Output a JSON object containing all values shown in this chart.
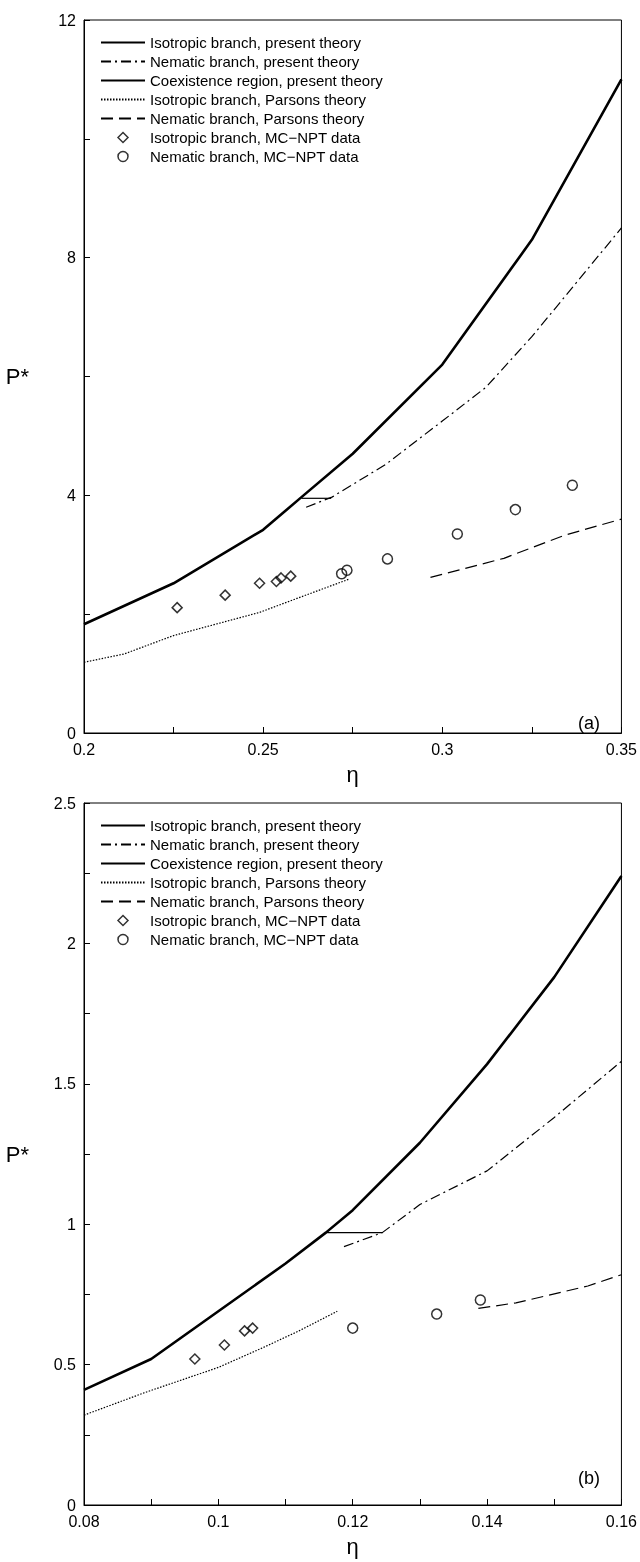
{
  "chart_data": [
    {
      "type": "line",
      "xlabel": "η",
      "ylabel": "P*",
      "annotations": [
        "(a)"
      ],
      "xlim": [
        0.2,
        0.35
      ],
      "ylim": [
        0,
        12
      ],
      "xticks": [
        0.2,
        {
          "value": 0.225,
          "label": null
        },
        0.25,
        {
          "value": 0.275,
          "label": null
        },
        0.3,
        {
          "value": 0.325,
          "label": null
        },
        0.35
      ],
      "yticks": [
        0,
        {
          "value": 2,
          "label": null
        },
        4,
        {
          "value": 6,
          "label": null
        },
        8,
        {
          "value": 10,
          "label": null
        },
        12
      ],
      "legend": "top left",
      "grid": false,
      "series": [
        {
          "name": "Isotropic branch, present theory",
          "type": "line",
          "line_style": "solid",
          "marker": "none",
          "color": "#000000",
          "x": [
            0.2,
            0.225,
            0.25,
            0.2607,
            0.275,
            0.3,
            0.325,
            0.35
          ],
          "values": [
            1.83,
            2.52,
            3.42,
            3.97,
            4.7,
            6.2,
            8.3,
            11.0
          ]
        },
        {
          "name": "Nematic branch, present theory",
          "line_style": "dashdot",
          "marker": "none",
          "color": "#000000",
          "x": [
            0.262,
            0.2692,
            0.2842,
            0.3,
            0.3122,
            0.325,
            0.35
          ],
          "values": [
            3.8,
            3.97,
            4.52,
            5.25,
            5.82,
            6.67,
            8.5
          ]
        },
        {
          "name": "Coexistence region, present theory",
          "type": "line",
          "line_style": "solid",
          "marker": "none",
          "color": "#000000",
          "x": [
            0.2607,
            0.269
          ],
          "values": [
            3.95,
            3.95
          ]
        },
        {
          "name": "Isotropic branch, Parsons theory",
          "type": "line",
          "line_style": "dotted",
          "marker": "none",
          "color": "#000000",
          "x": [
            0.2,
            0.2112,
            0.225,
            0.249,
            0.261,
            0.274
          ],
          "values": [
            1.19,
            1.33,
            1.64,
            2.03,
            2.3,
            2.59
          ]
        },
        {
          "name": "Nematic branch, Parsons theory",
          "type": "line",
          "line_style": "dashed",
          "marker": "none",
          "color": "#000000",
          "x": [
            0.2967,
            0.3172,
            0.3342,
            0.35
          ],
          "values": [
            2.62,
            2.94,
            3.33,
            3.6
          ]
        },
        {
          "name": "Isotropic branch, MC−NPT data",
          "type": "scatter",
          "marker": "diamond",
          "color": "#000000",
          "x": [
            0.226,
            0.2394,
            0.249,
            0.2537,
            0.255,
            0.2577
          ],
          "values": [
            2.11,
            2.32,
            2.52,
            2.55,
            2.61,
            2.64
          ]
        },
        {
          "name": "Nematic branch, MC−NPT data",
          "type": "scatter",
          "marker": "circle",
          "color": "#000000",
          "x": [
            0.2719,
            0.2734,
            0.2847,
            0.3042,
            0.3204,
            0.3363
          ],
          "values": [
            2.68,
            2.74,
            2.93,
            3.35,
            3.76,
            4.17
          ]
        }
      ]
    },
    {
      "type": "line",
      "xlabel": "η",
      "ylabel": "P*",
      "annotations": [
        "(b)"
      ],
      "xlim": [
        0.08,
        0.16
      ],
      "ylim": [
        0,
        2.5
      ],
      "xticks": [
        0.08,
        {
          "value": 0.09,
          "label": null
        },
        0.1,
        {
          "value": 0.11,
          "label": null
        },
        0.12,
        {
          "value": 0.13,
          "label": null
        },
        0.14,
        {
          "value": 0.15,
          "label": null
        },
        0.16
      ],
      "yticks": [
        0,
        {
          "value": 0.25,
          "label": null
        },
        0.5,
        {
          "value": 0.75,
          "label": null
        },
        1,
        {
          "value": 1.25,
          "label": null
        },
        1.5,
        {
          "value": 1.75,
          "label": null
        },
        2,
        {
          "value": 2.25,
          "label": null
        },
        2.5
      ],
      "legend": "top left",
      "grid": false,
      "series": [
        {
          "name": "Isotropic branch, present theory",
          "type": "line",
          "line_style": "solid",
          "marker": "none",
          "color": "#000000",
          "x": [
            0.08,
            0.09,
            0.1,
            0.11,
            0.116,
            0.12,
            0.13,
            0.14,
            0.15,
            0.16
          ],
          "values": [
            0.41,
            0.52,
            0.69,
            0.86,
            0.97,
            1.05,
            1.29,
            1.57,
            1.88,
            2.24
          ]
        },
        {
          "name": "Nematic branch, present theory",
          "line_style": "dashdot",
          "marker": "none",
          "color": "#000000",
          "x": [
            0.1187,
            0.1244,
            0.13,
            0.14,
            0.15,
            0.16
          ],
          "values": [
            0.92,
            0.97,
            1.07,
            1.19,
            1.38,
            1.58
          ]
        },
        {
          "name": "Coexistence region, present theory",
          "type": "line",
          "line_style": "solid",
          "marker": "none",
          "color": "#000000",
          "x": [
            0.116,
            0.1244
          ],
          "values": [
            0.97,
            0.97
          ]
        },
        {
          "name": "Isotropic branch, Parsons theory",
          "type": "line",
          "line_style": "dotted",
          "marker": "none",
          "color": "#000000",
          "x": [
            0.08,
            0.089,
            0.1,
            0.1066,
            0.112,
            0.1177
          ],
          "values": [
            0.32,
            0.4,
            0.49,
            0.56,
            0.62,
            0.69
          ]
        },
        {
          "name": "Nematic branch, Parsons theory",
          "type": "line",
          "line_style": "dashed",
          "marker": "none",
          "color": "#000000",
          "x": [
            0.1387,
            0.1443,
            0.1497,
            0.155,
            0.16
          ],
          "values": [
            0.7,
            0.72,
            0.75,
            0.78,
            0.82
          ]
        },
        {
          "name": "Isotropic branch, MC−NPT data",
          "type": "scatter",
          "marker": "diamond",
          "color": "#000000",
          "x": [
            0.0965,
            0.1009,
            0.1039,
            0.1051
          ],
          "values": [
            0.52,
            0.57,
            0.62,
            0.63
          ]
        },
        {
          "name": "Nematic branch, MC−NPT data",
          "type": "scatter",
          "marker": "circle",
          "color": "#000000",
          "x": [
            0.12,
            0.1325,
            0.139
          ],
          "values": [
            0.63,
            0.68,
            0.73
          ]
        }
      ]
    }
  ]
}
